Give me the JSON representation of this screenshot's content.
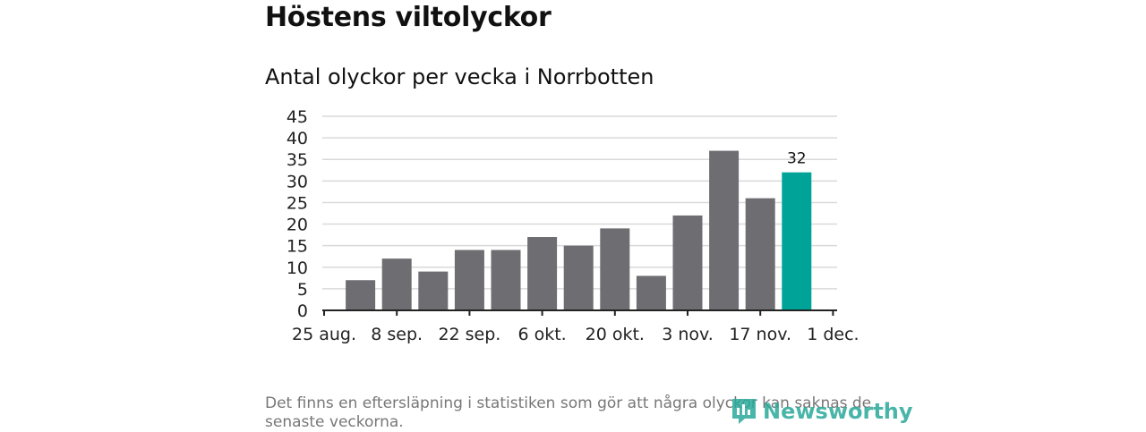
{
  "title": "Höstens viltolyckor",
  "subtitle": "Antal olyckor per vecka i Norrbotten",
  "footnote": "Det finns en eftersläpning i statistiken som gör att några olyckor kan saknas de senaste veckorna.",
  "logo": {
    "text": "Newsworthy",
    "icon": "newsworthy-logo-icon",
    "color": "#2aa89a"
  },
  "colors": {
    "bar": "#6e6d72",
    "highlight": "#00a398",
    "grid": "#d9d9d9",
    "axis": "#222222"
  },
  "chart_data": {
    "type": "bar",
    "title": "Antal olyckor per vecka i Norrbotten",
    "xlabel": "",
    "ylabel": "",
    "ylim": [
      0,
      45
    ],
    "yticks": [
      0,
      5,
      10,
      15,
      20,
      25,
      30,
      35,
      40,
      45
    ],
    "x_tick_labels": [
      "25 aug.",
      "8 sep.",
      "22 sep.",
      "6 okt.",
      "20 okt.",
      "3 nov.",
      "17 nov.",
      "1 dec."
    ],
    "values": [
      7,
      12,
      9,
      14,
      14,
      17,
      15,
      19,
      8,
      22,
      37,
      26,
      32
    ],
    "highlight_index": 12,
    "data_labels": [
      {
        "index": 12,
        "text": "32"
      }
    ],
    "grid": true,
    "legend": "none"
  }
}
